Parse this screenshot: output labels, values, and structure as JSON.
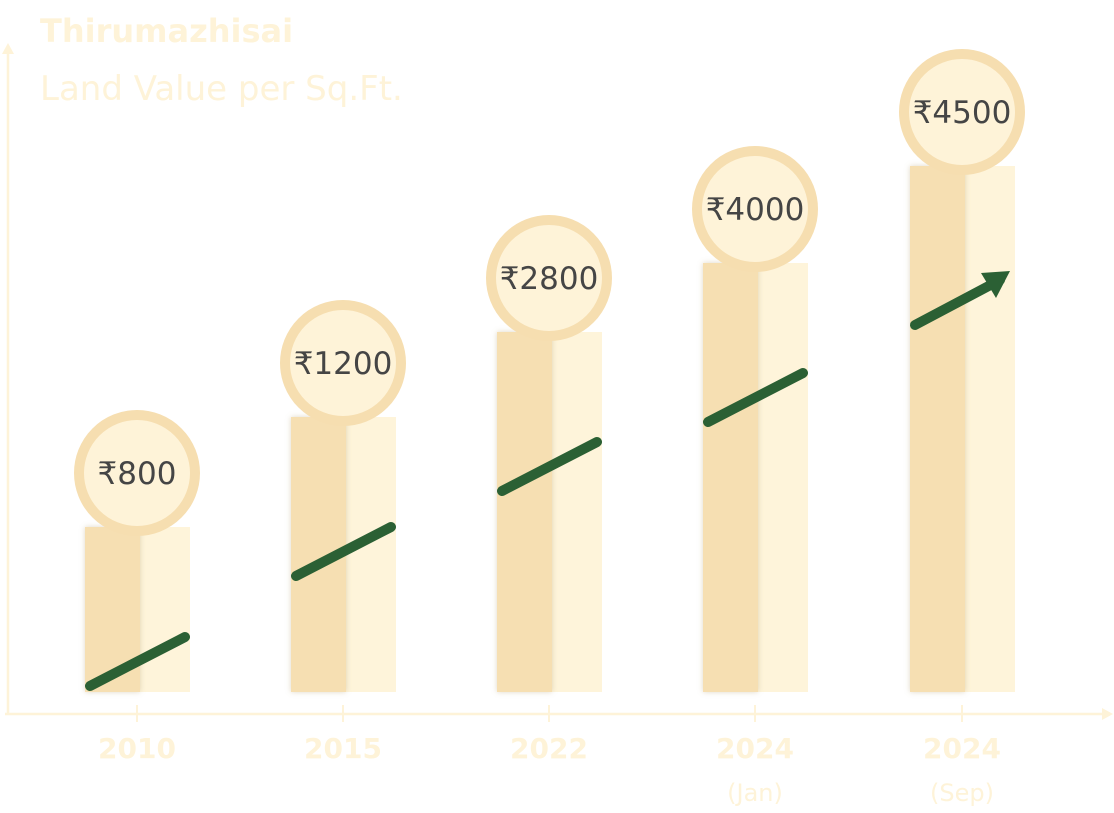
{
  "chart_data": {
    "type": "bar",
    "title": "Thirumazhisai",
    "subtitle": "Land Value per Sq.Ft.",
    "categories": [
      {
        "label": "2010",
        "sublabel": ""
      },
      {
        "label": "2015",
        "sublabel": ""
      },
      {
        "label": "2022",
        "sublabel": ""
      },
      {
        "label": "2024",
        "sublabel": "(Jan)"
      },
      {
        "label": "2024",
        "sublabel": "(Sep)"
      }
    ],
    "values": [
      800,
      1200,
      2800,
      4000,
      4500
    ],
    "data_labels": [
      "₹800",
      "₹1200",
      "₹2800",
      "₹4000",
      "₹4500"
    ],
    "currency": "₹",
    "trend": "increasing",
    "grid": false,
    "legend": "none",
    "colors": {
      "bar_dark": "#F6DFB2",
      "bar_light": "#FEF4DA",
      "bubble_border": "#F6DEB0",
      "bubble_fill": "#FEF3D8",
      "trend_arrow": "#2B6034",
      "axis_and_text": "#FEF3D8",
      "value_text": "#454545"
    }
  }
}
